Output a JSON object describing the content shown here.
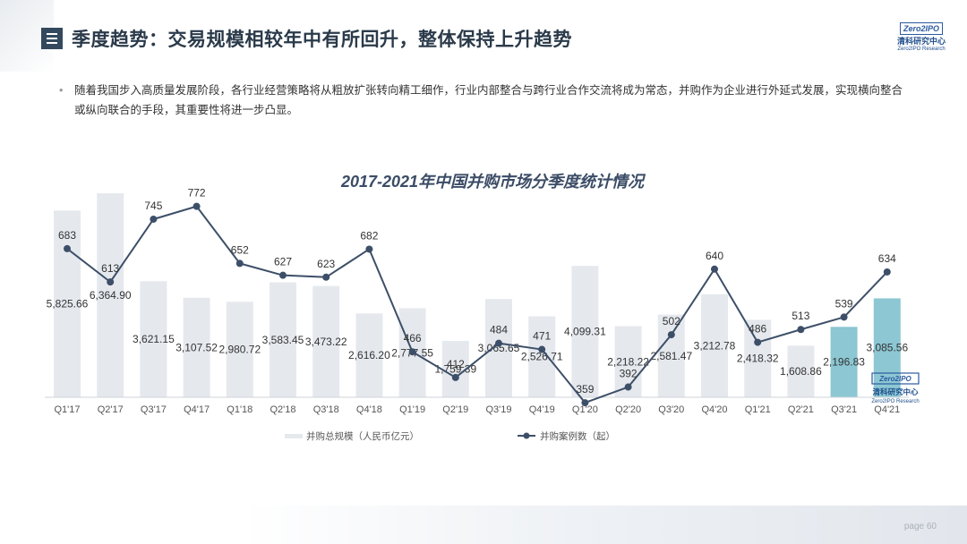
{
  "header": {
    "title": "季度趋势：交易规模相较年中有所回升，整体保持上升趋势"
  },
  "logo": {
    "mark": "Zero2IPO",
    "name_cn": "清科研究中心",
    "name_en": "Zero2IPO Research"
  },
  "bullet": {
    "text": "随着我国步入高质量发展阶段，各行业经营策略将从粗放扩张转向精工细作，行业内部整合与跨行业合作交流将成为常态，并购作为企业进行外延式发展，实现横向整合或纵向联合的手段，其重要性将进一步凸显。"
  },
  "footer": {
    "page": "page  60"
  },
  "colors": {
    "bar": "#e5e9ee",
    "bar_highlight": "#8cc7d3",
    "line": "#3d4f68"
  },
  "chart_data": {
    "type": "bar",
    "title": "2017-2021年中国并购市场分季度统计情况",
    "categories": [
      "Q1'17",
      "Q2'17",
      "Q3'17",
      "Q4'17",
      "Q1'18",
      "Q2'18",
      "Q3'18",
      "Q4'18",
      "Q1'19",
      "Q2'19",
      "Q3'19",
      "Q4'19",
      "Q1'20",
      "Q2'20",
      "Q3'20",
      "Q4'20",
      "Q1'21",
      "Q2'21",
      "Q3'21",
      "Q4'21"
    ],
    "series": [
      {
        "name": "并购总规模（人民币亿元）",
        "kind": "bar",
        "highlight_last": 2,
        "values": [
          5825.66,
          6364.9,
          3621.15,
          3107.52,
          2980.72,
          3583.45,
          3473.22,
          2616.2,
          2777.55,
          1759.39,
          3065.65,
          2526.71,
          4099.31,
          2218.22,
          2581.47,
          3212.78,
          2418.32,
          1608.86,
          2196.83,
          3085.56
        ],
        "labels": [
          "5,825.66",
          "6,364.90",
          "3,621.15",
          "3,107.52",
          "2,980.72",
          "3,583.45",
          "3,473.22",
          "2,616.20",
          "2,777.55",
          "1,759.39",
          "3,065.65",
          "2,526.71",
          "4,099.31",
          "2,218.22",
          "2,581.47",
          "3,212.78",
          "2,418.32",
          "1,608.86",
          "2,196.83",
          "3,085.56"
        ]
      },
      {
        "name": "并购案例数（起）",
        "kind": "line",
        "values": [
          683,
          613,
          745,
          772,
          652,
          627,
          623,
          682,
          466,
          412,
          484,
          471,
          359,
          392,
          502,
          640,
          486,
          513,
          539,
          634
        ],
        "labels": [
          "683",
          "613",
          "745",
          "772",
          "652",
          "627",
          "623",
          "682",
          "466",
          "412",
          "484",
          "471",
          "359",
          "392",
          "502",
          "640",
          "486",
          "513",
          "539",
          "634"
        ]
      }
    ],
    "legend_position": "bottom",
    "grid": false
  }
}
